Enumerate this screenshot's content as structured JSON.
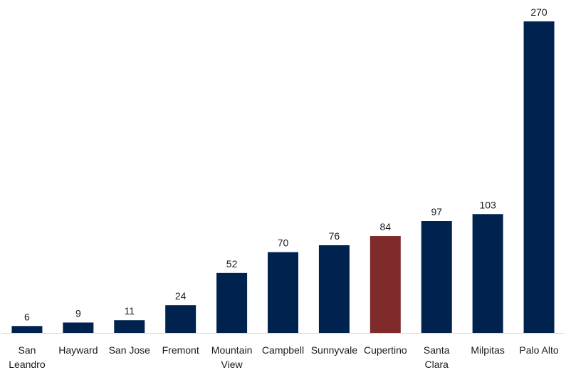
{
  "chart_data": {
    "type": "bar",
    "title": "",
    "xlabel": "",
    "ylabel": "",
    "categories": [
      "San Leandro",
      "Hayward",
      "San Jose",
      "Fremont",
      "Mountain View",
      "Campbell",
      "Sunnyvale",
      "Cupertino",
      "Santa Clara",
      "Milpitas",
      "Palo Alto"
    ],
    "category_lines": [
      [
        "San",
        "Leandro"
      ],
      [
        "Hayward"
      ],
      [
        "San Jose"
      ],
      [
        "Fremont"
      ],
      [
        "Mountain",
        "View"
      ],
      [
        "Campbell"
      ],
      [
        "Sunnyvale"
      ],
      [
        "Cupertino"
      ],
      [
        "Santa",
        "Clara"
      ],
      [
        "Milpitas"
      ],
      [
        "Palo Alto"
      ]
    ],
    "values": [
      6,
      9,
      11,
      24,
      52,
      70,
      76,
      84,
      97,
      103,
      270
    ],
    "highlight_index": 7,
    "colors": {
      "bar": "#00224f",
      "highlight": "#7f2a2b",
      "baseline": "#d9d9d9"
    },
    "ylim": [
      0,
      270
    ],
    "grid": false,
    "legend": "none"
  }
}
